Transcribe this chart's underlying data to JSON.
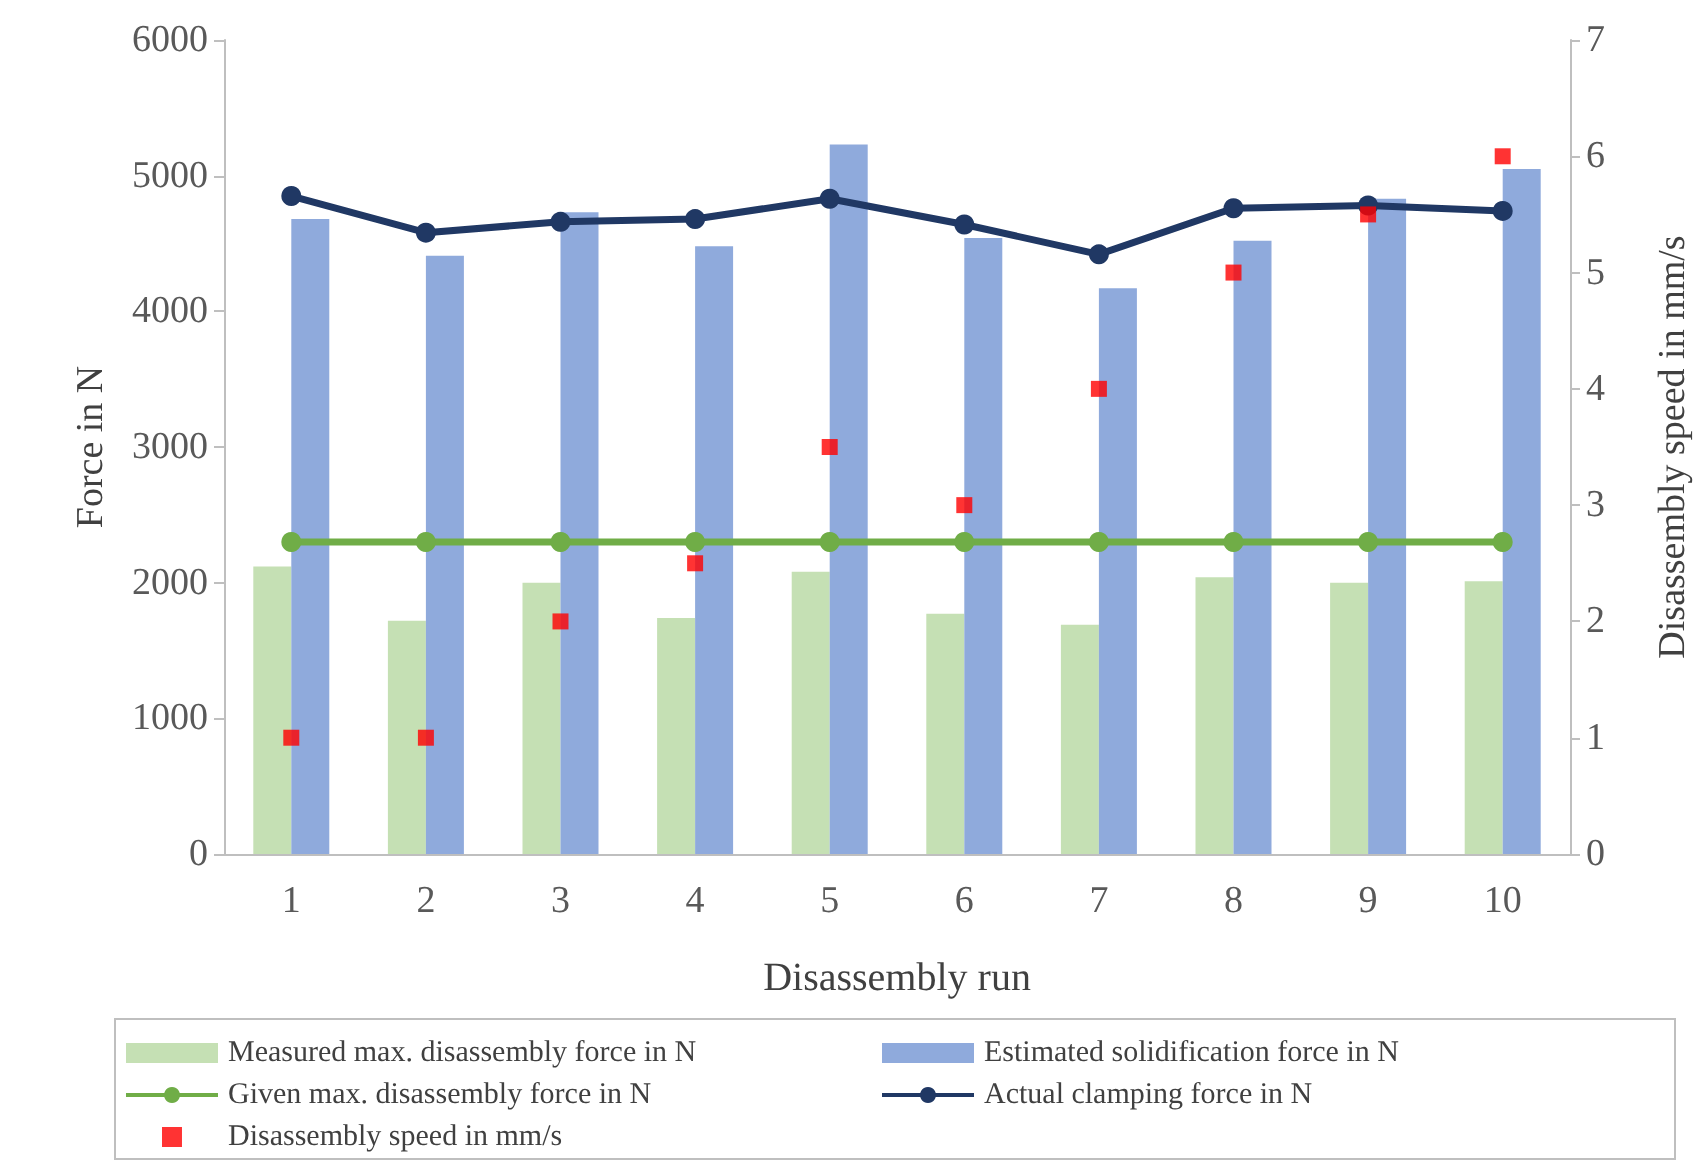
{
  "chart_data": {
    "type": "bar",
    "xlabel": "Disassembly run",
    "ylabel": "Force in N",
    "y2label": "Disassembly speed in mm/s",
    "categories": [
      "1",
      "2",
      "3",
      "4",
      "5",
      "6",
      "7",
      "8",
      "9",
      "10"
    ],
    "series": [
      {
        "name": "Measured max. disassembly force in N",
        "color": "#c5e0b4",
        "values": [
          2120,
          1720,
          2000,
          1740,
          2080,
          1770,
          1690,
          2040,
          2000,
          2010
        ]
      },
      {
        "name": "Estimated solidification force in N",
        "color": "#8faadc",
        "values": [
          4680,
          4410,
          4730,
          4480,
          5230,
          4540,
          4170,
          4520,
          4830,
          5050
        ]
      },
      {
        "name": "Given max. disassembly force in N",
        "type": "line",
        "color": "#70ad47",
        "marker": "circle",
        "values": [
          2300,
          2300,
          2300,
          2300,
          2300,
          2300,
          2300,
          2300,
          2300,
          2300
        ]
      },
      {
        "name": "Actual clamping force in N",
        "type": "line",
        "color": "#203864",
        "marker": "circle",
        "values": [
          4850,
          4580,
          4660,
          4680,
          4830,
          4640,
          4420,
          4760,
          4780,
          4740
        ]
      },
      {
        "name": "Disassembly speed in mm/s",
        "type": "scatter",
        "axis": "y2",
        "color": "#ff0000",
        "marker": "square",
        "values": [
          1,
          1,
          2,
          2.5,
          3.5,
          3,
          4,
          5,
          5.5,
          6
        ]
      }
    ],
    "ylim": [
      0,
      6000
    ],
    "yticks": [
      0,
      1000,
      2000,
      3000,
      4000,
      5000,
      6000
    ],
    "y2lim": [
      0,
      7
    ],
    "y2ticks": [
      0,
      1,
      2,
      3,
      4,
      5,
      6,
      7
    ],
    "grid": false,
    "legend": "bottom"
  }
}
